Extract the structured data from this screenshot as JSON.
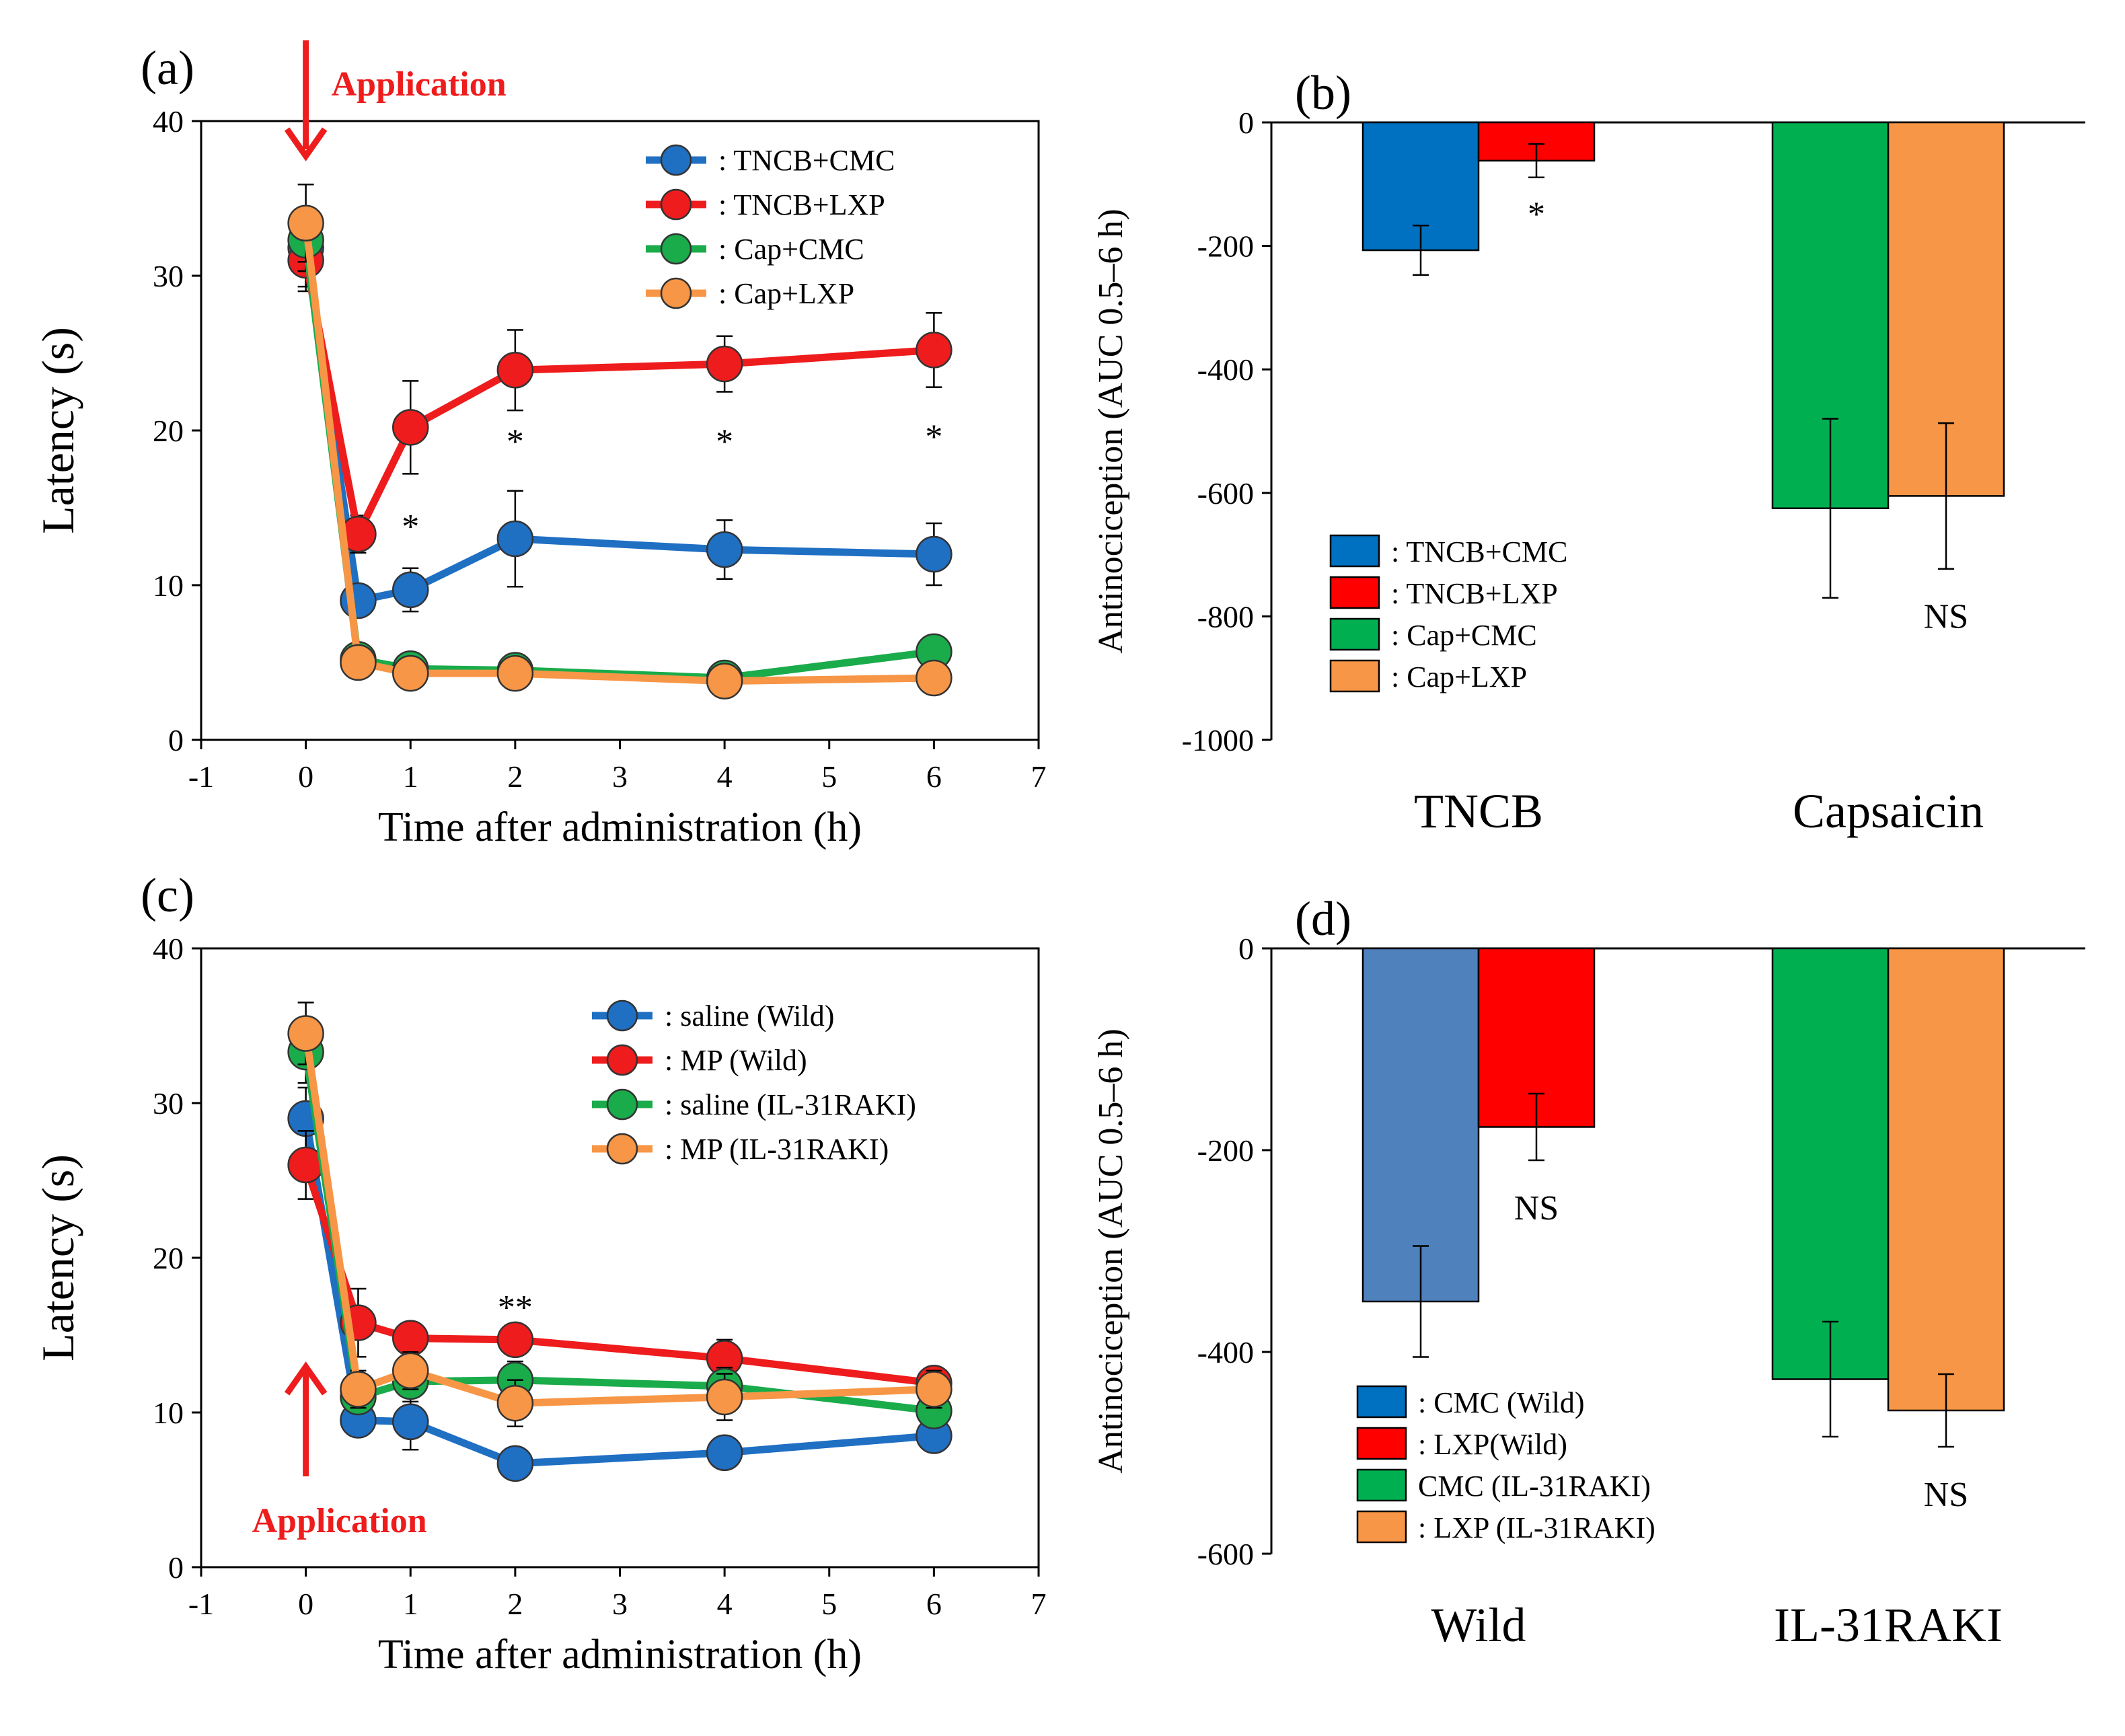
{
  "chart_data": [
    {
      "panel": "(a)",
      "type": "line",
      "xlabel": "Time after administration (h)",
      "ylabel": "Latency (s)",
      "xlim": [
        -1,
        7
      ],
      "ylim": [
        0,
        40
      ],
      "xticks": [
        -1,
        0,
        1,
        2,
        3,
        4,
        5,
        6,
        7
      ],
      "yticks": [
        0,
        10,
        20,
        30,
        40
      ],
      "x": [
        0,
        0.5,
        1,
        2,
        4,
        6
      ],
      "series": [
        {
          "name": "TNCB+CMC",
          "legend": ": TNCB+CMC",
          "color": "#1f6fc3",
          "values": [
            31.8,
            9.0,
            9.7,
            13.0,
            12.3,
            12.0
          ],
          "errors": [
            2.5,
            0.8,
            1.4,
            3.1,
            1.9,
            2.0
          ]
        },
        {
          "name": "TNCB+LXP",
          "legend": ": TNCB+LXP",
          "color": "#ee1c1c",
          "values": [
            31.0,
            13.3,
            20.2,
            23.9,
            24.3,
            25.2
          ],
          "errors": [
            2.0,
            1.2,
            3.0,
            2.6,
            1.8,
            2.4
          ]
        },
        {
          "name": "Cap+CMC",
          "legend": ": Cap+CMC",
          "color": "#1aab4b",
          "values": [
            32.3,
            5.2,
            4.6,
            4.5,
            4.0,
            5.7
          ],
          "errors": [
            2.0,
            0.5,
            0.4,
            0.4,
            0.4,
            0.5
          ]
        },
        {
          "name": "Cap+LXP",
          "legend": ": Cap+LXP",
          "color": "#f79646",
          "values": [
            33.4,
            5.0,
            4.3,
            4.3,
            3.8,
            4.0
          ],
          "errors": [
            2.5,
            0.5,
            0.4,
            0.4,
            0.4,
            0.4
          ]
        }
      ],
      "significance": [
        {
          "x": 1,
          "y": 14.0,
          "label": "*"
        },
        {
          "x": 2,
          "y": 19.5,
          "label": "*"
        },
        {
          "x": 4,
          "y": 19.5,
          "label": "*"
        },
        {
          "x": 6,
          "y": 19.8,
          "label": "*"
        }
      ],
      "annotation": {
        "label": "Application",
        "at_x": 0,
        "direction": "down",
        "color": "#ee1c1c"
      }
    },
    {
      "panel": "(b)",
      "type": "bar",
      "ylabel": "Antinociception (AUC 0.5–6 h)",
      "ylim": [
        -1000,
        0
      ],
      "yticks": [
        0,
        -200,
        -400,
        -600,
        -800,
        -1000
      ],
      "categories": [
        "TNCB",
        "Capsaicin"
      ],
      "series": [
        {
          "name": "TNCB+CMC",
          "legend": ": TNCB+CMC",
          "color": "#0070c0",
          "category": "TNCB",
          "value": -207,
          "error": 40
        },
        {
          "name": "TNCB+LXP",
          "legend": ": TNCB+LXP",
          "color": "#ff0000",
          "category": "TNCB",
          "value": -62,
          "error": 27
        },
        {
          "name": "Cap+CMC",
          "legend": ": Cap+CMC",
          "color": "#00b050",
          "category": "Capsaicin",
          "value": -625,
          "error": 145
        },
        {
          "name": "Cap+LXP",
          "legend": ": Cap+LXP",
          "color": "#f79646",
          "category": "Capsaicin",
          "value": -605,
          "error": 118
        }
      ],
      "significance": [
        {
          "category": "TNCB",
          "label": "*"
        },
        {
          "category": "Capsaicin",
          "label": "NS"
        }
      ]
    },
    {
      "panel": "(c)",
      "type": "line",
      "xlabel": "Time after administration (h)",
      "ylabel": "Latency (s)",
      "xlim": [
        -1,
        7
      ],
      "ylim": [
        0,
        40
      ],
      "xticks": [
        -1,
        0,
        1,
        2,
        3,
        4,
        5,
        6,
        7
      ],
      "yticks": [
        0,
        10,
        20,
        30,
        40
      ],
      "x": [
        0,
        0.5,
        1,
        2,
        4,
        6
      ],
      "series": [
        {
          "name": "saline (Wild)",
          "legend": ": saline (Wild)",
          "color": "#1f6fc3",
          "values": [
            29.0,
            9.5,
            9.4,
            6.7,
            7.4,
            8.5
          ],
          "errors": [
            2.0,
            1.0,
            1.8,
            0.5,
            0.6,
            0.6
          ]
        },
        {
          "name": "MP (Wild)",
          "legend": ": MP (Wild)",
          "color": "#ee1c1c",
          "values": [
            26.0,
            15.8,
            14.8,
            14.7,
            13.5,
            11.9
          ],
          "errors": [
            2.2,
            2.2,
            1.0,
            1.0,
            1.2,
            0.8
          ]
        },
        {
          "name": "saline (IL-31RAKI)",
          "legend": ": saline (IL-31RAKI)",
          "color": "#1aab4b",
          "values": [
            33.3,
            11.0,
            12.0,
            12.1,
            11.7,
            10.1
          ],
          "errors": [
            2.0,
            1.0,
            1.3,
            1.2,
            1.2,
            1.0
          ]
        },
        {
          "name": "MP (IL-31RAKI)",
          "legend": ": MP (IL-31RAKI)",
          "color": "#f79646",
          "values": [
            34.5,
            11.5,
            12.7,
            10.6,
            11.0,
            11.5
          ],
          "errors": [
            2.0,
            1.2,
            1.2,
            1.5,
            1.5,
            1.2
          ]
        }
      ],
      "significance": [
        {
          "x": 2,
          "y": 17.0,
          "label": "**"
        }
      ],
      "annotation": {
        "label": "Application",
        "at_x": 0,
        "direction": "up",
        "color": "#ee1c1c"
      }
    },
    {
      "panel": "(d)",
      "type": "bar",
      "ylabel": "Antinociception (AUC 0.5–6 h)",
      "ylim": [
        -600,
        0
      ],
      "yticks": [
        0,
        -200,
        -400,
        -600
      ],
      "categories": [
        "Wild",
        "IL-31RAKI"
      ],
      "series": [
        {
          "name": "CMC (Wild)",
          "legend": ": CMC (Wild)",
          "color": "#4f81bd",
          "category": "Wild",
          "value": -350,
          "error": 55
        },
        {
          "name": "LXP(Wild)",
          "legend": ": LXP(Wild)",
          "color": "#ff0000",
          "category": "Wild",
          "value": -177,
          "error": 33
        },
        {
          "name": "CMC (IL-31RAKI)",
          "legend": "CMC (IL-31RAKI)",
          "color": "#00b050",
          "category": "IL-31RAKI",
          "value": -427,
          "error": 57
        },
        {
          "name": "LXP (IL-31RAKI)",
          "legend": ": LXP (IL-31RAKI)",
          "color": "#f79646",
          "category": "IL-31RAKI",
          "value": -458,
          "error": 36
        }
      ],
      "legend_swatch_colors": [
        "#0070c0",
        "#ff0000",
        "#00b050",
        "#f79646"
      ],
      "significance": [
        {
          "category": "Wild",
          "label": "NS"
        },
        {
          "category": "IL-31RAKI",
          "label": "NS"
        }
      ]
    }
  ]
}
